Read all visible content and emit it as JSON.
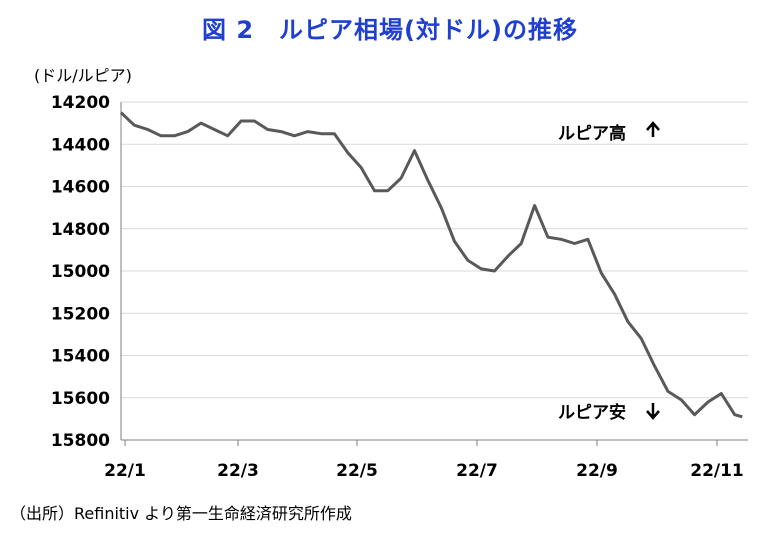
{
  "title": "図 2　ルピア相場(対ドル)の推移",
  "unit_label": "(ドル/ルピア)",
  "source": "（出所）Refinitiv より第一生命経済研究所作成",
  "chart_data": {
    "type": "line",
    "title": "図 2　ルピア相場(対ドル)の推移",
    "ylabel": "(ドル/ルピア)",
    "y_inverted": true,
    "ylim": [
      14200,
      15800
    ],
    "yticks": [
      14200,
      14400,
      14600,
      14800,
      15000,
      15200,
      15400,
      15600,
      15800
    ],
    "xticks": [
      "22/1",
      "22/3",
      "22/5",
      "22/7",
      "22/9",
      "22/11"
    ],
    "grid": "horizontal",
    "annotations": [
      {
        "text": "ルピア高",
        "arrow": "up"
      },
      {
        "text": "ルピア安",
        "arrow": "down"
      }
    ],
    "color": "#595959",
    "series": [
      {
        "x": [
          "2022-01-03",
          "2022-01-10",
          "2022-01-17",
          "2022-01-24",
          "2022-01-31",
          "2022-02-07",
          "2022-02-14",
          "2022-02-21",
          "2022-02-28",
          "2022-03-07",
          "2022-03-14",
          "2022-03-21",
          "2022-03-28",
          "2022-04-04",
          "2022-04-11",
          "2022-04-18",
          "2022-04-25",
          "2022-05-02",
          "2022-05-09",
          "2022-05-16",
          "2022-05-23",
          "2022-05-30",
          "2022-06-06",
          "2022-06-13",
          "2022-06-20",
          "2022-06-27",
          "2022-07-04",
          "2022-07-11",
          "2022-07-18",
          "2022-07-25",
          "2022-08-01",
          "2022-08-08",
          "2022-08-15",
          "2022-08-22",
          "2022-08-29",
          "2022-09-05",
          "2022-09-12",
          "2022-09-19",
          "2022-09-26",
          "2022-10-03",
          "2022-10-10",
          "2022-10-17",
          "2022-10-24",
          "2022-10-31",
          "2022-11-07",
          "2022-11-14",
          "2022-11-21",
          "2022-11-25"
        ],
        "values": [
          14250,
          14310,
          14330,
          14360,
          14360,
          14340,
          14300,
          14330,
          14360,
          14290,
          14290,
          14330,
          14340,
          14360,
          14340,
          14350,
          14350,
          14440,
          14510,
          14620,
          14620,
          14560,
          14430,
          14570,
          14700,
          14860,
          14950,
          14990,
          15000,
          14930,
          14870,
          14690,
          14840,
          14850,
          14870,
          14850,
          15010,
          15110,
          15240,
          15320,
          15450,
          15570,
          15610,
          15680,
          15620,
          15580,
          15680,
          15690
        ]
      }
    ]
  }
}
